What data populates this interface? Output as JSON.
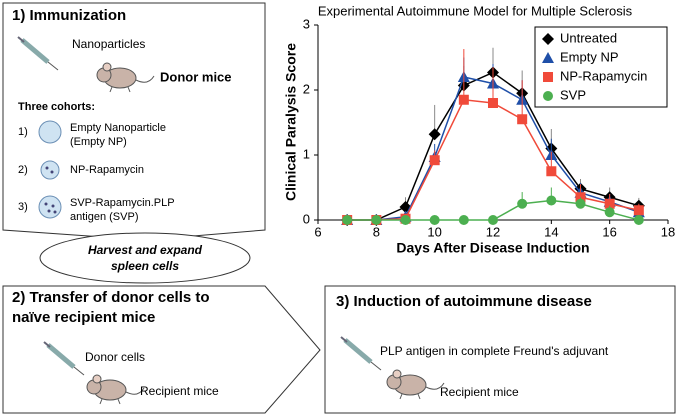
{
  "panel1": {
    "title": "1) Immunization",
    "particles": "Nanoparticles",
    "donor": "Donor mice",
    "cohorts_title": "Three cohorts:",
    "cohorts": [
      {
        "num": "1)",
        "lines": [
          "Empty Nanoparticle",
          "(Empty NP)"
        ]
      },
      {
        "num": "2)",
        "lines": [
          "NP-Rapamycin"
        ]
      },
      {
        "num": "3)",
        "lines": [
          "SVP-Rapamycin.PLP",
          "antigen (SVP)"
        ]
      }
    ],
    "harvest": [
      "Harvest and expand",
      "spleen cells"
    ]
  },
  "panel2": {
    "title": [
      "2) Transfer of donor cells to",
      "naïve recipient mice"
    ],
    "cells": "Donor cells",
    "recipient": "Recipient mice"
  },
  "panel3": {
    "title": "3) Induction of autoimmune disease",
    "antigen": "PLP antigen in complete Freund's adjuvant",
    "recipient": "Recipient mice"
  },
  "chart_data": {
    "type": "line",
    "title": "Experimental Autoimmune Model for Multiple Sclerosis",
    "x_label": "Days After Disease Induction",
    "y_label": "Clinical Paralysis Score",
    "x": [
      7,
      8,
      9,
      10,
      11,
      12,
      13,
      14,
      15,
      16,
      17
    ],
    "xlim": [
      6,
      18
    ],
    "xticks": [
      6,
      8,
      10,
      12,
      14,
      16,
      18
    ],
    "ylim": [
      0,
      3
    ],
    "yticks": [
      0,
      1,
      2,
      3
    ],
    "legend": "upper right",
    "series": [
      {
        "name": "Untreated",
        "color": "#000000",
        "marker": "diamond",
        "values": [
          0,
          0,
          0.2,
          1.32,
          2.07,
          2.27,
          1.95,
          1.1,
          0.48,
          0.35,
          0.22
        ],
        "errors": [
          0,
          0,
          0.15,
          0.45,
          0.3,
          0.38,
          0.35,
          0.3,
          0.15,
          0.15,
          0.12
        ]
      },
      {
        "name": "Empty NP",
        "color": "#1f4fa8",
        "marker": "triangle",
        "values": [
          0,
          0,
          0.05,
          0.97,
          2.2,
          2.1,
          1.85,
          1.0,
          0.42,
          0.28,
          0.12
        ],
        "errors": [
          0,
          0,
          0.05,
          0.2,
          0.3,
          0.3,
          0.3,
          0.25,
          0.15,
          0.12,
          0.1
        ]
      },
      {
        "name": "NP-Rapamycin",
        "color": "#f04a3a",
        "marker": "square",
        "values": [
          0,
          0,
          0.02,
          0.92,
          1.85,
          1.8,
          1.55,
          0.75,
          0.35,
          0.25,
          0.15
        ],
        "errors": [
          0,
          0,
          0.05,
          0.15,
          0.78,
          0.55,
          0.6,
          0.3,
          0.2,
          0.15,
          0.1
        ]
      },
      {
        "name": "SVP",
        "color": "#4caf50",
        "marker": "circle",
        "values": [
          0,
          0,
          0,
          0,
          0,
          0,
          0.25,
          0.3,
          0.25,
          0.12,
          0.0
        ],
        "errors": [
          0,
          0,
          0,
          0,
          0,
          0,
          0.18,
          0.2,
          0.1,
          0.1,
          0
        ]
      }
    ]
  }
}
